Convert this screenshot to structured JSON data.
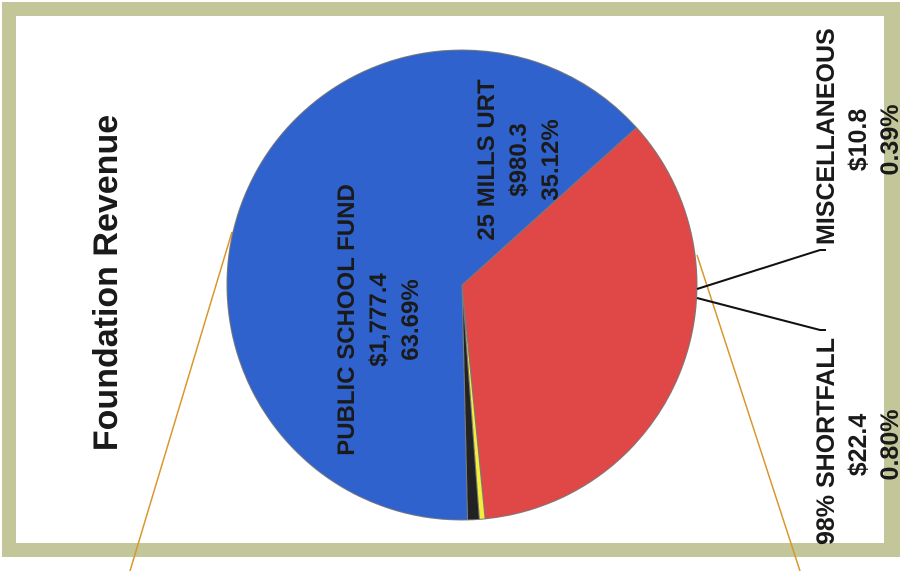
{
  "colors": {
    "frame": "#c3c698",
    "public_school_fund": "#2f62cc",
    "mills_urt": "#e04848",
    "miscellaneous": "#f2ee3a",
    "shortfall": "#222222",
    "leader": "#d9962a"
  },
  "chart_data": {
    "type": "pie",
    "title": "Foundation Revenue",
    "orientation": "rotated 90 degrees counter-clockwise",
    "slices": [
      {
        "name": "PUBLIC SCHOOL FUND",
        "value": 1777.4,
        "value_label": "$1,777.4",
        "percent": 63.69,
        "percent_label": "63.69%",
        "color": "#2f62cc"
      },
      {
        "name": "25 MILLS URT",
        "value": 980.3,
        "value_label": "$980.3",
        "percent": 35.12,
        "percent_label": "35.12%",
        "color": "#e04848"
      },
      {
        "name": "MISCELLANEOUS",
        "value": 10.8,
        "value_label": "$10.8",
        "percent": 0.39,
        "percent_label": "0.39%",
        "color": "#f2ee3a"
      },
      {
        "name": "98% SHORTFALL",
        "value": 22.4,
        "value_label": "$22.4",
        "percent": 0.8,
        "percent_label": "0.80%",
        "color": "#222222"
      }
    ]
  }
}
